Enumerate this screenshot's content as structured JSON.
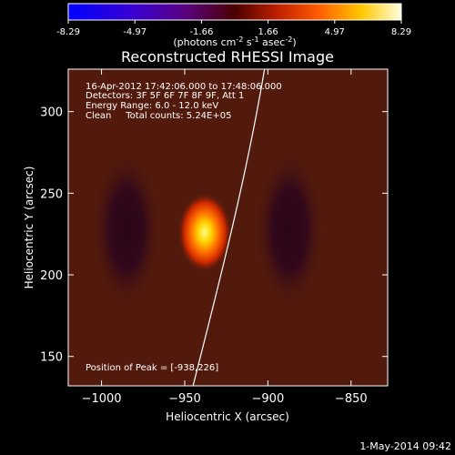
{
  "colorbar": {
    "ticks": [
      "-8.29",
      "-4.97",
      "-1.66",
      "1.66",
      "4.97",
      "8.29"
    ],
    "units_text": "(photons cm",
    "units_exp1": "-2",
    "units_mid": " s",
    "units_exp2": "-1",
    "units_mid2": " asec",
    "units_exp3": "-2",
    "units_close": ")"
  },
  "plot": {
    "title": "Reconstructed RHESSI Image",
    "annotations": [
      "16-Apr-2012 17:42:06.000 to 17:48:06.000",
      "Detectors: 3F 5F 6F 7F 8F 9F, Att 1",
      "Energy Range: 6.0 - 12.0 keV",
      "Clean     Total counts: 5.24E+05"
    ],
    "peak_label": "Position of Peak = [-938,226]"
  },
  "footer": {
    "timestamp": "1-May-2014 09:42"
  },
  "chart_data": {
    "type": "heatmap",
    "title": "Reconstructed RHESSI Image",
    "xlabel": "Heliocentric X (arcsec)",
    "ylabel": "Heliocentric Y (arcsec)",
    "xlim": [
      -1020,
      -828
    ],
    "ylim": [
      132,
      326
    ],
    "xticks": [
      -1000,
      -950,
      -900,
      -850
    ],
    "yticks": [
      150,
      200,
      250,
      300
    ],
    "colorbar_range": [
      -8.29,
      8.29
    ],
    "colormap": [
      "#0000ff",
      "#1a0060",
      "#300020",
      "#5a0a00",
      "#b02000",
      "#ff5000",
      "#ffb000",
      "#ffff60",
      "#ffffff"
    ],
    "background_color": "#521a0c",
    "peak": {
      "x": -938,
      "y": 226,
      "value": 8.29
    },
    "negative_lobes": [
      {
        "x": -985,
        "y": 228
      },
      {
        "x": -887,
        "y": 228
      }
    ],
    "limb_curve": [
      [
        -945,
        132
      ],
      [
        -928,
        200
      ],
      [
        -913,
        260
      ],
      [
        -902,
        326
      ]
    ]
  }
}
